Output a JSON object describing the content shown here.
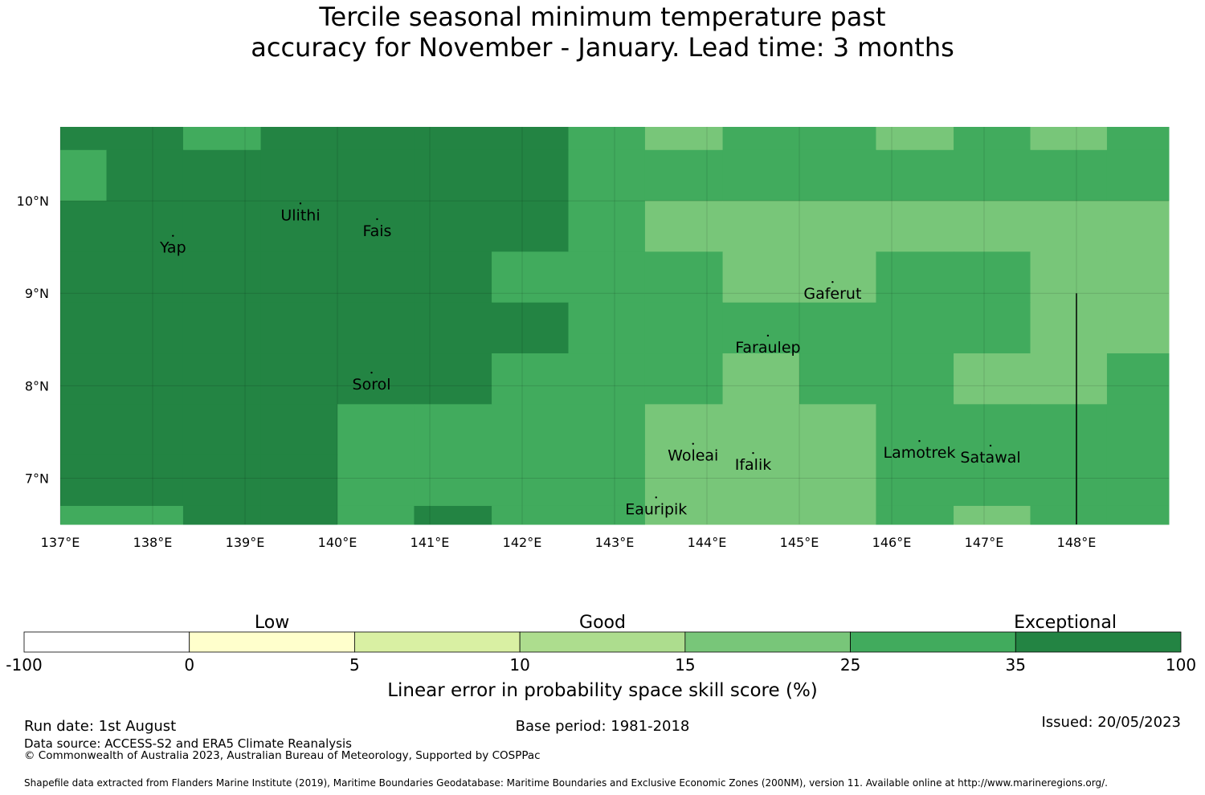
{
  "title": {
    "line1": "Tercile seasonal minimum temperature past",
    "line2": "accuracy for November - January. Lead time: 3 months"
  },
  "map": {
    "lon_range": [
      137,
      149
    ],
    "lat_range": [
      6.5,
      10.8
    ],
    "lon_ticks": [
      "137°E",
      "138°E",
      "139°E",
      "140°E",
      "141°E",
      "142°E",
      "143°E",
      "144°E",
      "145°E",
      "146°E",
      "147°E",
      "148°E"
    ],
    "lat_ticks": [
      "10°N",
      "9°N",
      "8°N",
      "7°N"
    ],
    "lon_tick_values": [
      137,
      138,
      139,
      140,
      141,
      142,
      143,
      144,
      145,
      146,
      147,
      148
    ],
    "lat_tick_values": [
      10,
      9,
      8,
      7
    ],
    "cell_lon_edges": [
      137,
      137.5,
      138.33,
      139.17,
      140,
      140.83,
      141.67,
      142.5,
      143.33,
      144.17,
      145,
      145.83,
      146.67,
      147.5,
      148.33,
      149
    ],
    "cell_lat_edges": [
      10.8,
      10.55,
      10.0,
      9.45,
      8.9,
      8.35,
      7.8,
      7.25,
      6.7,
      6.5
    ],
    "cell_levels": [
      [
        6,
        6,
        5,
        6,
        6,
        6,
        6,
        5,
        4,
        5,
        5,
        4,
        5,
        4,
        5
      ],
      [
        5,
        6,
        6,
        6,
        6,
        6,
        6,
        5,
        5,
        5,
        5,
        5,
        5,
        5,
        5
      ],
      [
        6,
        6,
        6,
        6,
        6,
        6,
        6,
        5,
        4,
        4,
        4,
        4,
        4,
        4,
        4
      ],
      [
        6,
        6,
        6,
        6,
        6,
        6,
        5,
        5,
        5,
        4,
        4,
        5,
        5,
        4,
        4
      ],
      [
        6,
        6,
        6,
        6,
        6,
        6,
        6,
        5,
        5,
        5,
        5,
        5,
        5,
        4,
        4
      ],
      [
        6,
        6,
        6,
        6,
        6,
        6,
        5,
        5,
        5,
        4,
        5,
        5,
        4,
        4,
        5
      ],
      [
        6,
        6,
        6,
        6,
        5,
        5,
        5,
        5,
        4,
        4,
        4,
        5,
        5,
        5,
        5
      ],
      [
        6,
        6,
        6,
        6,
        5,
        5,
        5,
        5,
        4,
        4,
        4,
        5,
        5,
        5,
        5
      ],
      [
        5,
        5,
        6,
        6,
        5,
        6,
        5,
        5,
        4,
        4,
        4,
        5,
        4,
        5,
        5
      ]
    ],
    "islands": [
      {
        "name": "Yap",
        "lon": 138.22,
        "lat": 9.5
      },
      {
        "name": "Ulithi",
        "lon": 139.6,
        "lat": 9.85
      },
      {
        "name": "Fais",
        "lon": 140.43,
        "lat": 9.68
      },
      {
        "name": "Gaferut",
        "lon": 145.36,
        "lat": 9.0
      },
      {
        "name": "Faraulep",
        "lon": 144.66,
        "lat": 8.42
      },
      {
        "name": "Sorol",
        "lon": 140.37,
        "lat": 8.02
      },
      {
        "name": "Woleai",
        "lon": 143.85,
        "lat": 7.25
      },
      {
        "name": "Ifalik",
        "lon": 144.5,
        "lat": 7.15
      },
      {
        "name": "Lamotrek",
        "lon": 146.3,
        "lat": 7.28
      },
      {
        "name": "Satawal",
        "lon": 147.07,
        "lat": 7.23
      },
      {
        "name": "Eauripik",
        "lon": 143.45,
        "lat": 6.67
      }
    ],
    "boundary_lon": 148.0,
    "boundary_lat_range": [
      6.5,
      9.0
    ]
  },
  "legend": {
    "categories": [
      "Low",
      "Good",
      "Exceptional"
    ],
    "ticks": [
      "-100",
      "0",
      "5",
      "10",
      "15",
      "25",
      "35",
      "100"
    ],
    "colors": [
      "#ffffff",
      "#ffffcc",
      "#d9f0a3",
      "#addd8e",
      "#78c679",
      "#41ab5d",
      "#238443"
    ],
    "label": "Linear error in probability space skill score (%)"
  },
  "footer": {
    "run_date": "Run date: 1st August",
    "base_period": "Base period: 1981-2018",
    "issued": "Issued: 20/05/2023",
    "data_source": "Data source: ACCESS-S2 and ERA5 Climate Reanalysis",
    "copyright": "© Commonwealth of Australia 2023, Australian Bureau of Meteorology, Supported by COSPPac",
    "shapefile": "Shapefile data extracted from Flanders Marine Institute (2019), Maritime Boundaries Geodatabase: Maritime Boundaries and Exclusive Economic Zones (200NM), version 11. Available online at http://www.marineregions.org/."
  }
}
